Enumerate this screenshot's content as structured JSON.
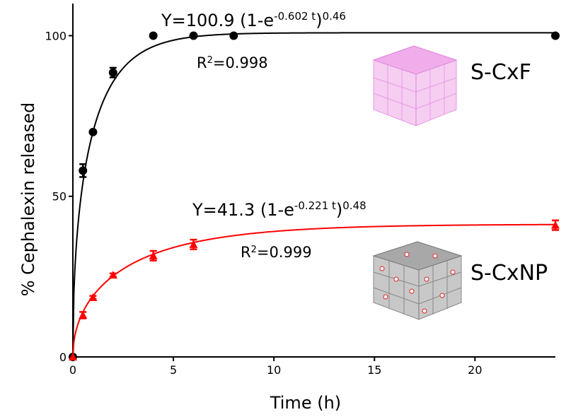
{
  "chart_data": {
    "type": "scatter",
    "x_label": "Time (h)",
    "y_label": "% Cephalexin released",
    "xlim": [
      0,
      24
    ],
    "ylim": [
      0,
      110
    ],
    "xticks": [
      0,
      5,
      10,
      15,
      20
    ],
    "yticks": [
      0,
      50,
      100
    ],
    "series": [
      {
        "name": "S-CxF",
        "color": "#000000",
        "marker": "circle",
        "x": [
          0,
          0.5,
          1,
          2,
          4,
          6,
          8,
          24
        ],
        "values": [
          0,
          58,
          70,
          88.5,
          100,
          100,
          100,
          100
        ],
        "errors": [
          0,
          2,
          0,
          1.5,
          0,
          0,
          0,
          0
        ],
        "fit": {
          "a": 100.9,
          "k": 0.602,
          "n": 0.46
        }
      },
      {
        "name": "S-CxNP",
        "color": "#ff0000",
        "marker": "triangle",
        "x": [
          0,
          0.5,
          1,
          2,
          4,
          6,
          24
        ],
        "values": [
          0,
          13,
          18.5,
          25.5,
          31.5,
          35,
          41
        ],
        "errors": [
          0,
          1,
          0.5,
          0.5,
          1.5,
          1.5,
          1.5
        ],
        "fit": {
          "a": 41.3,
          "k": 0.221,
          "n": 0.48
        }
      }
    ],
    "annotations": [
      {
        "parts": [
          {
            "text": "Y=100.9 (1-e"
          },
          {
            "text": "-0.602 t",
            "sup": true
          },
          {
            "text": ")"
          },
          {
            "text": "0.46",
            "sup": true
          }
        ]
      },
      {
        "parts": [
          {
            "text": "R"
          },
          {
            "text": "2",
            "sup": true
          },
          {
            "text": "=0.998"
          }
        ]
      },
      {
        "parts": [
          {
            "text": "Y=41.3 (1-e"
          },
          {
            "text": "-0.221 t",
            "sup": true
          },
          {
            "text": ")"
          },
          {
            "text": "0.48",
            "sup": true
          }
        ]
      },
      {
        "parts": [
          {
            "text": "R"
          },
          {
            "text": "2",
            "sup": true
          },
          {
            "text": "=0.999"
          }
        ]
      }
    ]
  }
}
